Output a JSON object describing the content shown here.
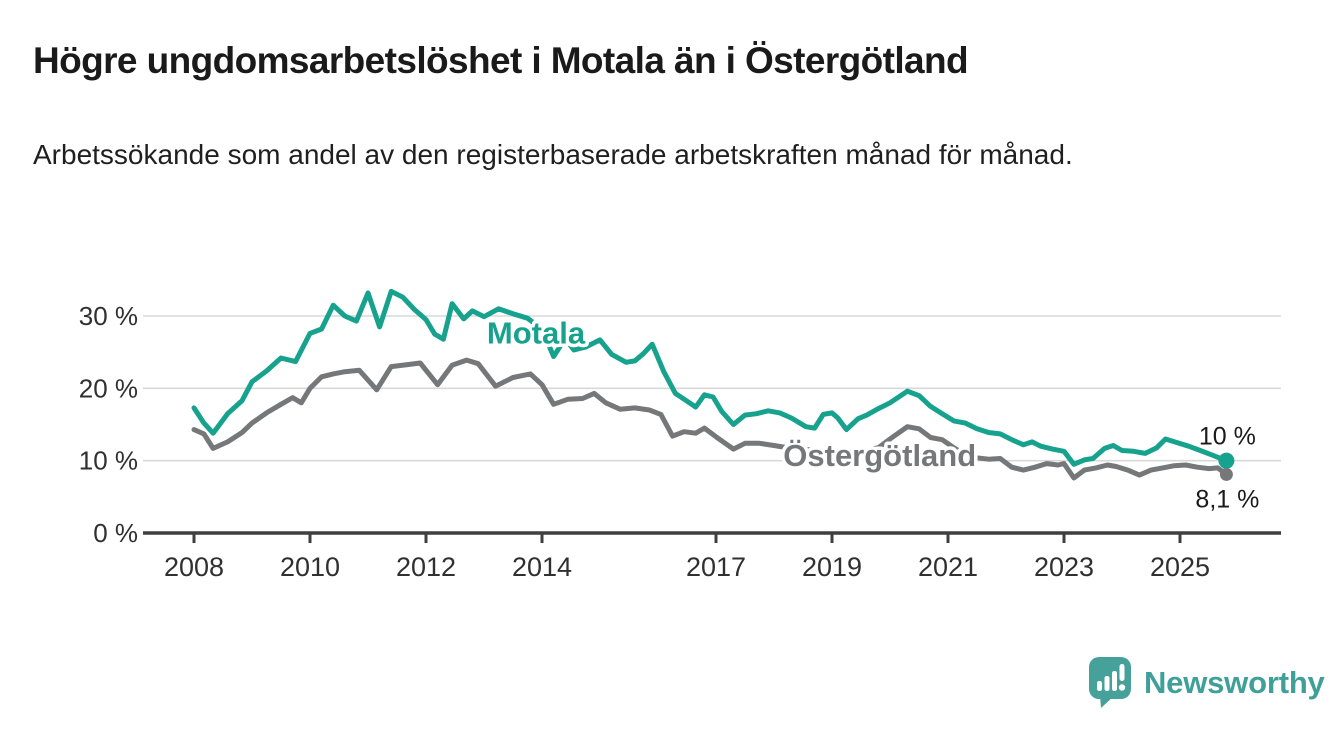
{
  "page": {
    "title": "Högre ungdomsarbetslöshet i Motala än i Östergötland",
    "subtitle": "Arbetssökande som andel av den registerbaserade arbetskraften månad för månad."
  },
  "branding": {
    "logo_text": "Newsworthy",
    "logo_icon": "bar-chart-speech-bubble-icon",
    "logo_color": "#46a19b",
    "logo_text_color": "#3f9f99"
  },
  "colors": {
    "motala_line": "#17a28e",
    "ostergotland_line": "#767779",
    "gridline": "#d8d8d8",
    "axis": "#3f3f3f",
    "axis_text": "#303030",
    "end_label_text": "#1a1a1a"
  },
  "chart_data": {
    "type": "line",
    "title": "Högre ungdomsarbetslöshet i Motala än i Östergötland",
    "subtitle": "Arbetssökande som andel av den registerbaserade arbetskraften månad för månad.",
    "xlabel": "",
    "ylabel": "",
    "grid": true,
    "legend_position": "inline-labels",
    "ylim": [
      0,
      34
    ],
    "xlim": [
      2007.3,
      2026.2
    ],
    "x_ticks": [
      2008,
      2010,
      2012,
      2014,
      2017,
      2019,
      2021,
      2023,
      2025
    ],
    "y_ticks": [
      {
        "value": 0,
        "label": "0 %"
      },
      {
        "value": 10,
        "label": "10 %"
      },
      {
        "value": 20,
        "label": "20 %"
      },
      {
        "value": 30,
        "label": "30 %"
      }
    ],
    "series": [
      {
        "id": "motala",
        "name": "Motala",
        "color": "#17a28e",
        "end_label": "10 %",
        "label_x": 2013.05,
        "label_y": 26.2,
        "x": [
          2008.0,
          2008.17,
          2008.33,
          2008.58,
          2008.83,
          2009.0,
          2009.25,
          2009.5,
          2009.75,
          2010.0,
          2010.2,
          2010.4,
          2010.6,
          2010.8,
          2011.0,
          2011.2,
          2011.4,
          2011.6,
          2011.8,
          2012.0,
          2012.15,
          2012.3,
          2012.45,
          2012.65,
          2012.8,
          2013.0,
          2013.25,
          2013.5,
          2013.75,
          2014.0,
          2014.2,
          2014.4,
          2014.55,
          2014.75,
          2015.0,
          2015.2,
          2015.45,
          2015.6,
          2015.75,
          2015.9,
          2016.1,
          2016.3,
          2016.45,
          2016.65,
          2016.8,
          2016.95,
          2017.1,
          2017.3,
          2017.5,
          2017.7,
          2017.9,
          2018.1,
          2018.3,
          2018.55,
          2018.7,
          2018.85,
          2019.0,
          2019.1,
          2019.25,
          2019.45,
          2019.6,
          2019.8,
          2020.0,
          2020.3,
          2020.5,
          2020.7,
          2020.9,
          2021.1,
          2021.3,
          2021.5,
          2021.7,
          2021.9,
          2022.1,
          2022.3,
          2022.45,
          2022.6,
          2022.8,
          2023.0,
          2023.17,
          2023.35,
          2023.5,
          2023.7,
          2023.85,
          2024.0,
          2024.2,
          2024.4,
          2024.6,
          2024.75,
          2024.95,
          2025.15,
          2025.35,
          2025.55,
          2025.8
        ],
        "y": [
          17.3,
          15.2,
          13.8,
          16.5,
          18.3,
          20.9,
          22.4,
          24.2,
          23.7,
          27.6,
          28.2,
          31.5,
          30.0,
          29.3,
          33.2,
          28.5,
          33.4,
          32.6,
          30.9,
          29.5,
          27.5,
          26.8,
          31.7,
          29.6,
          30.7,
          29.9,
          31.0,
          30.3,
          29.7,
          28.2,
          24.4,
          26.9,
          25.3,
          25.7,
          26.7,
          24.7,
          23.6,
          23.8,
          24.8,
          26.1,
          22.3,
          19.3,
          18.5,
          17.4,
          19.1,
          18.8,
          16.8,
          15.0,
          16.3,
          16.5,
          16.9,
          16.6,
          15.9,
          14.7,
          14.5,
          16.4,
          16.6,
          15.9,
          14.3,
          15.8,
          16.3,
          17.2,
          18.0,
          19.6,
          19.0,
          17.5,
          16.5,
          15.5,
          15.2,
          14.4,
          13.9,
          13.7,
          12.9,
          12.2,
          12.6,
          12.0,
          11.6,
          11.3,
          9.5,
          10.1,
          10.3,
          11.7,
          12.1,
          11.4,
          11.3,
          11.0,
          11.8,
          13.0,
          12.5,
          12.0,
          11.4,
          10.8,
          10.0
        ]
      },
      {
        "id": "ostergotland",
        "name": "Östergötland",
        "color": "#767779",
        "end_label": "8,1 %",
        "label_x": 2018.16,
        "label_y": 9.25,
        "x": [
          2008.0,
          2008.17,
          2008.33,
          2008.58,
          2008.83,
          2009.0,
          2009.25,
          2009.5,
          2009.7,
          2009.85,
          2010.0,
          2010.2,
          2010.4,
          2010.6,
          2010.85,
          2011.15,
          2011.4,
          2011.7,
          2011.9,
          2012.2,
          2012.45,
          2012.7,
          2012.9,
          2013.2,
          2013.5,
          2013.8,
          2014.0,
          2014.2,
          2014.45,
          2014.7,
          2014.9,
          2015.1,
          2015.35,
          2015.6,
          2015.85,
          2016.05,
          2016.25,
          2016.45,
          2016.65,
          2016.8,
          2017.0,
          2017.3,
          2017.5,
          2017.75,
          2018.0,
          2018.3,
          2018.6,
          2018.9,
          2019.2,
          2019.5,
          2019.8,
          2020.0,
          2020.3,
          2020.5,
          2020.7,
          2020.9,
          2021.1,
          2021.3,
          2021.5,
          2021.7,
          2021.9,
          2022.1,
          2022.3,
          2022.5,
          2022.7,
          2022.9,
          2023.0,
          2023.17,
          2023.35,
          2023.55,
          2023.75,
          2023.9,
          2024.1,
          2024.3,
          2024.5,
          2024.7,
          2024.9,
          2025.1,
          2025.3,
          2025.5,
          2025.65,
          2025.8
        ],
        "y": [
          14.3,
          13.7,
          11.7,
          12.6,
          13.9,
          15.2,
          16.6,
          17.8,
          18.7,
          18.0,
          20.0,
          21.6,
          22.0,
          22.3,
          22.5,
          19.8,
          23.0,
          23.3,
          23.5,
          20.5,
          23.2,
          23.9,
          23.4,
          20.3,
          21.5,
          22.0,
          20.5,
          17.8,
          18.5,
          18.6,
          19.3,
          18.0,
          17.1,
          17.3,
          17.0,
          16.4,
          13.4,
          14.0,
          13.8,
          14.5,
          13.3,
          11.6,
          12.4,
          12.4,
          12.1,
          11.7,
          11.5,
          11.3,
          11.2,
          11.3,
          11.8,
          13.0,
          14.7,
          14.4,
          13.2,
          12.9,
          11.8,
          10.8,
          10.4,
          10.2,
          10.3,
          9.1,
          8.7,
          9.1,
          9.6,
          9.4,
          9.6,
          7.6,
          8.7,
          9.0,
          9.4,
          9.2,
          8.7,
          8.0,
          8.7,
          9.0,
          9.3,
          9.4,
          9.1,
          8.9,
          9.0,
          8.1
        ]
      }
    ]
  }
}
